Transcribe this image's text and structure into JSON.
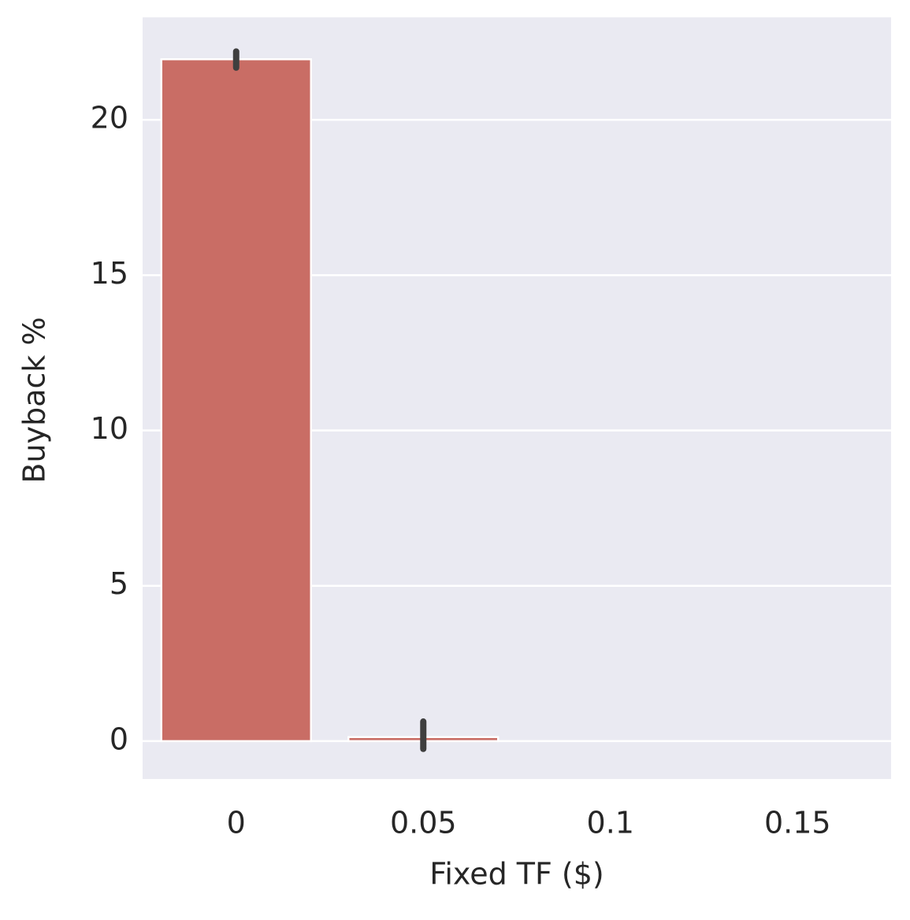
{
  "chart_data": {
    "type": "bar",
    "x_label": "Fixed TF ($)",
    "y_label": "Buyback %",
    "categories": [
      "0",
      "0.05",
      "0.1",
      "0.15"
    ],
    "values": [
      21.95,
      0.13,
      0,
      0
    ],
    "error_low": [
      21.68,
      -0.25,
      null,
      null
    ],
    "error_high": [
      22.2,
      0.63,
      null,
      null
    ],
    "color": "#c96d65",
    "ylim": [
      -1.22,
      23.3
    ],
    "yticks": [
      0,
      5,
      10,
      15,
      20
    ],
    "grid": true
  }
}
